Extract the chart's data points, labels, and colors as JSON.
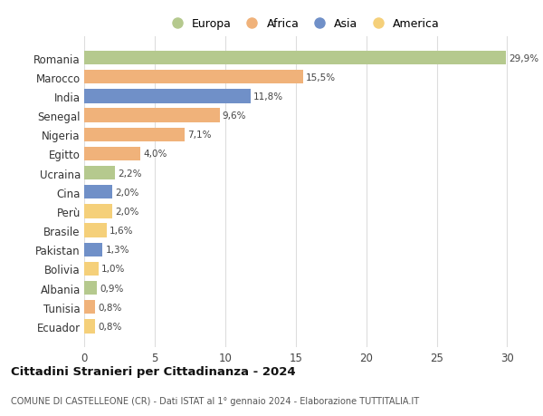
{
  "countries": [
    "Romania",
    "Marocco",
    "India",
    "Senegal",
    "Nigeria",
    "Egitto",
    "Ucraina",
    "Cina",
    "Perù",
    "Brasile",
    "Pakistan",
    "Bolivia",
    "Albania",
    "Tunisia",
    "Ecuador"
  ],
  "values": [
    29.9,
    15.5,
    11.8,
    9.6,
    7.1,
    4.0,
    2.2,
    2.0,
    2.0,
    1.6,
    1.3,
    1.0,
    0.9,
    0.8,
    0.8
  ],
  "labels": [
    "29,9%",
    "15,5%",
    "11,8%",
    "9,6%",
    "7,1%",
    "4,0%",
    "2,2%",
    "2,0%",
    "2,0%",
    "1,6%",
    "1,3%",
    "1,0%",
    "0,9%",
    "0,8%",
    "0,8%"
  ],
  "colors": [
    "#b5c98e",
    "#f0b27a",
    "#7090c8",
    "#f0b27a",
    "#f0b27a",
    "#f0b27a",
    "#b5c98e",
    "#7090c8",
    "#f5d07a",
    "#f5d07a",
    "#7090c8",
    "#f5d07a",
    "#b5c98e",
    "#f0b27a",
    "#f5d07a"
  ],
  "legend_labels": [
    "Europa",
    "Africa",
    "Asia",
    "America"
  ],
  "legend_colors": [
    "#b5c98e",
    "#f0b27a",
    "#7090c8",
    "#f5d07a"
  ],
  "title": "Cittadini Stranieri per Cittadinanza - 2024",
  "subtitle": "COMUNE DI CASTELLEONE (CR) - Dati ISTAT al 1° gennaio 2024 - Elaborazione TUTTITALIA.IT",
  "xlim": [
    0,
    31
  ],
  "xticks": [
    0,
    5,
    10,
    15,
    20,
    25,
    30
  ],
  "bg_color": "#ffffff",
  "grid_color": "#dddddd",
  "bar_height": 0.72
}
